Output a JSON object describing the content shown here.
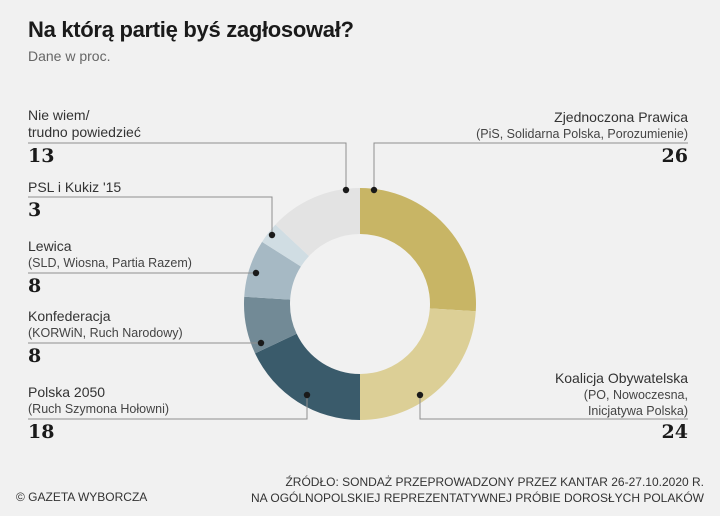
{
  "header": {
    "title": "Na którą partię byś zagłosował?",
    "subtitle": "Dane w proc."
  },
  "labels": {
    "zp": {
      "name": "Zjednoczona Prawica",
      "sub": "(PiS, Solidarna Polska, Porozumienie)",
      "value": "26"
    },
    "ko": {
      "name": "Koalicja Obywatelska",
      "sub1": "(PO, Nowoczesna,",
      "sub2": "Inicjatywa Polska)",
      "value": "24"
    },
    "p2050": {
      "name": "Polska 2050",
      "sub": "(Ruch Szymona Hołowni)",
      "value": "18"
    },
    "konf": {
      "name": "Konfederacja",
      "sub": "(KORWiN, Ruch Narodowy)",
      "value": "8"
    },
    "lewica": {
      "name": "Lewica",
      "sub": "(SLD, Wiosna, Partia Razem)",
      "value": "8"
    },
    "psl": {
      "name": "PSL i Kukiz '15",
      "value": "3"
    },
    "niewiem": {
      "name1": "Nie wiem/",
      "name2": "trudno powiedzieć",
      "value": "13"
    }
  },
  "footer": {
    "copyright": "© GAZETA WYBORCZA",
    "source_line1": "ŹRÓDŁO: SONDAŻ PRZEPROWADZONY PRZEZ KANTAR 26-27.10.2020 R.",
    "source_line2": "NA OGÓLNOPOLSKIEJ REPREZENTATYWNEJ PRÓBIE DOROSŁYCH POLAKÓW"
  },
  "chart_data": {
    "type": "pie",
    "variant": "donut",
    "title": "Na którą partię byś zagłosował?",
    "subtitle": "Dane w proc.",
    "categories": [
      "Zjednoczona Prawica (PiS, Solidarna Polska, Porozumienie)",
      "Koalicja Obywatelska (PO, Nowoczesna, Inicjatywa Polska)",
      "Polska 2050 (Ruch Szymona Hołowni)",
      "Konfederacja (KORWiN, Ruch Narodowy)",
      "Lewica (SLD, Wiosna, Partia Razem)",
      "PSL i Kukiz '15",
      "Nie wiem/trudno powiedzieć"
    ],
    "values": [
      26,
      24,
      18,
      8,
      8,
      3,
      13
    ],
    "colors": [
      "#c8b565",
      "#dccf96",
      "#3a5b6b",
      "#728a96",
      "#a6b9c4",
      "#d0dde3",
      "#e3e3e3"
    ],
    "unit": "%",
    "source": "ŹRÓDŁO: SONDAŻ PRZEPROWADZONY PRZEZ KANTAR 26-27.10.2020 R. NA OGÓLNOPOLSKIEJ REPREZENTATYWNEJ PRÓBIE DOROSŁYCH POLAKÓW"
  }
}
